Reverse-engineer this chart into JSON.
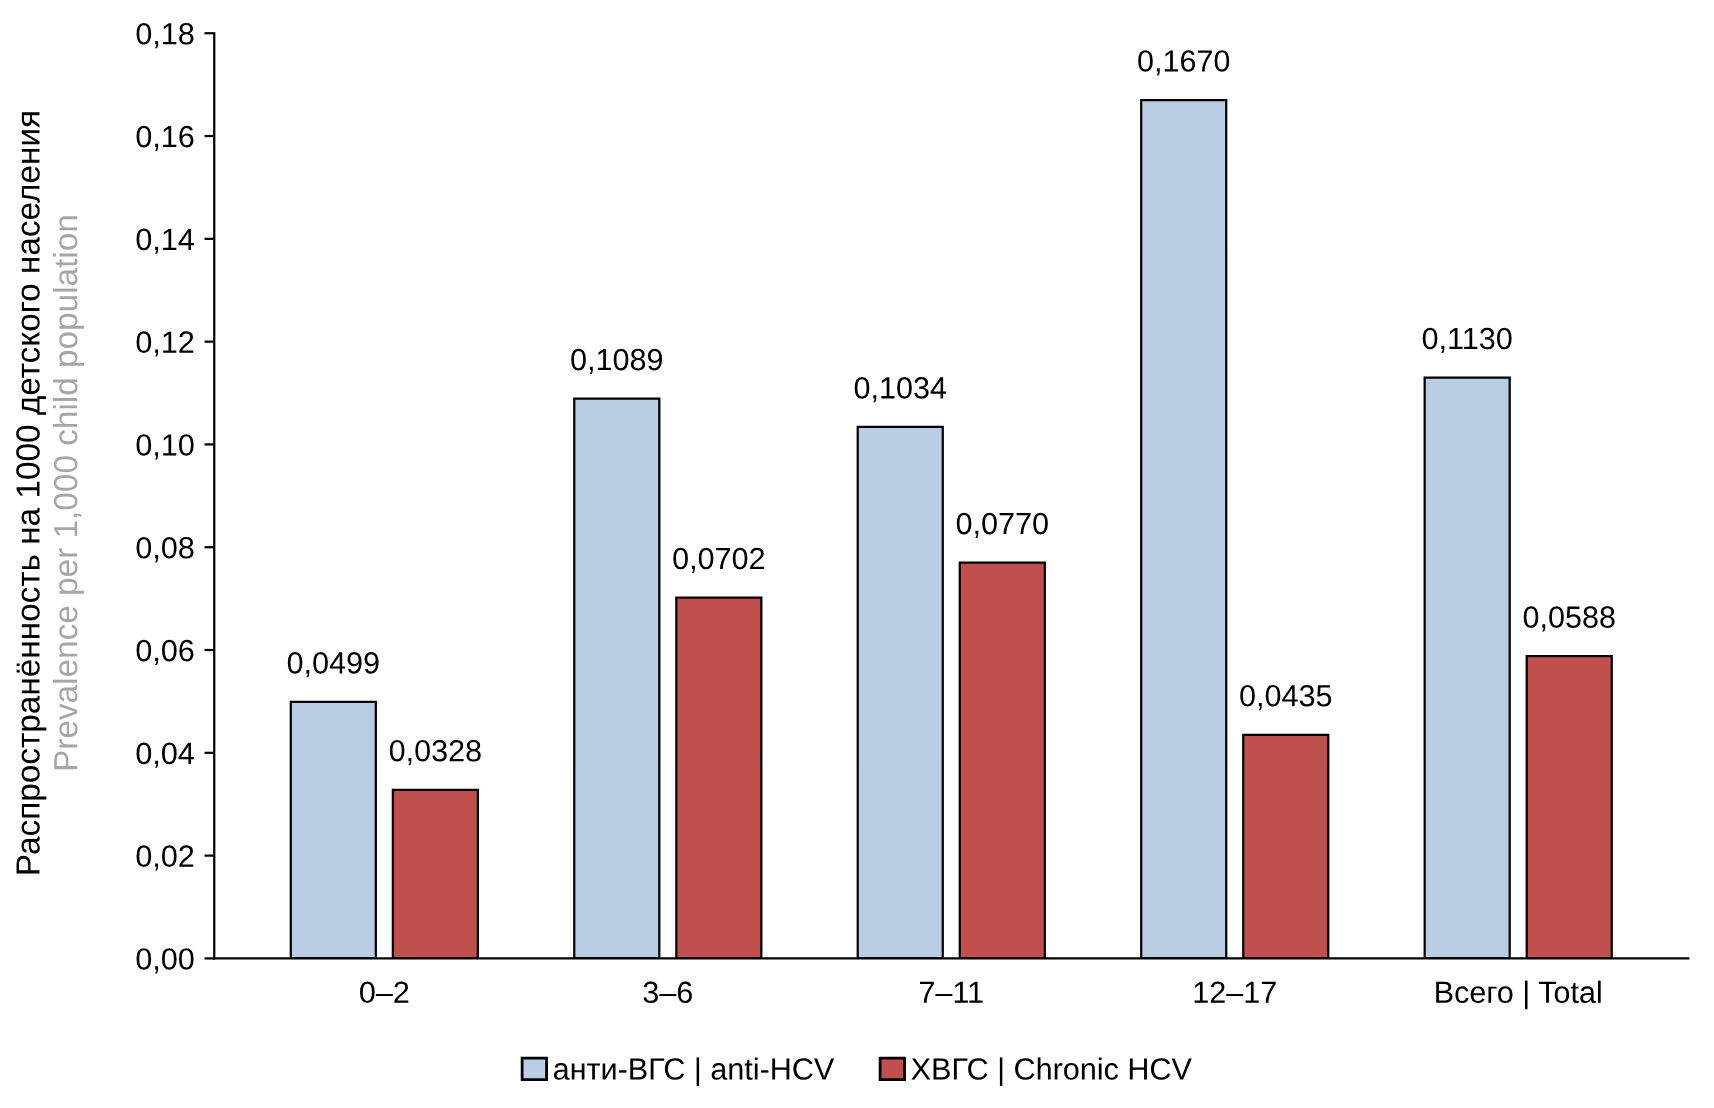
{
  "chart_data": {
    "type": "bar",
    "categories": [
      "0–2",
      "3–6",
      "7–11",
      "12–17",
      "Всего | Total"
    ],
    "series": [
      {
        "name": "анти-ВГС | anti-HCV",
        "color": "#b9cde5",
        "values": [
          0.0499,
          0.1089,
          0.1034,
          0.167,
          0.113
        ],
        "value_labels": [
          "0,0499",
          "0,1089",
          "0,1034",
          "0,1670",
          "0,1130"
        ]
      },
      {
        "name": "ХВГС | Chronic HCV",
        "color": "#c0504d",
        "values": [
          0.0328,
          0.0702,
          0.077,
          0.0435,
          0.0588
        ],
        "value_labels": [
          "0,0328",
          "0,0702",
          "0,0770",
          "0,0435",
          "0,0588"
        ]
      }
    ],
    "ylabel": "Распространённость на 1000 детского населения\nPrevalence per 1,000 child population",
    "ylim": [
      0,
      0.18
    ],
    "yticks": [
      {
        "value": 0,
        "label": "0,00"
      },
      {
        "value": 0.02,
        "label": "0,02"
      },
      {
        "value": 0.04,
        "label": "0,04"
      },
      {
        "value": 0.06,
        "label": "0,06"
      },
      {
        "value": 0.08,
        "label": "0,08"
      },
      {
        "value": 0.1,
        "label": "0,10"
      },
      {
        "value": 0.12,
        "label": "0,12"
      },
      {
        "value": 0.14,
        "label": "0,14"
      },
      {
        "value": 0.16,
        "label": "0,16"
      },
      {
        "value": 0.18,
        "label": "0,18"
      }
    ],
    "grid": false,
    "legend": "bottom"
  }
}
